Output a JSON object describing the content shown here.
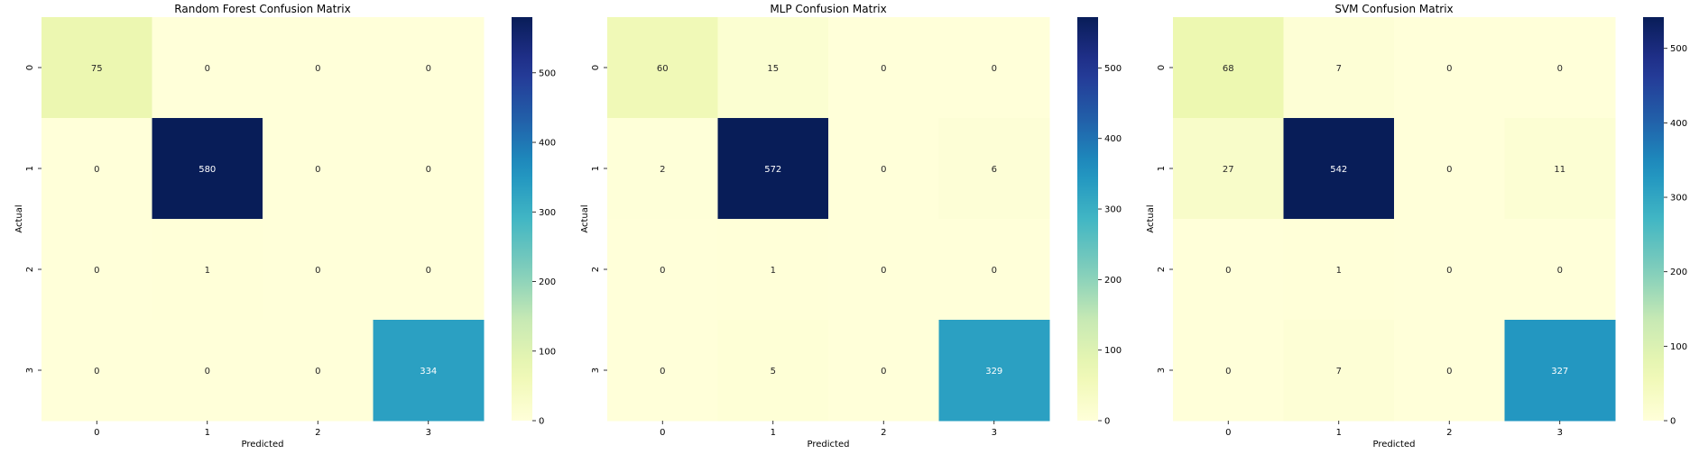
{
  "chart_data": [
    {
      "type": "heatmap",
      "title": "Random Forest Confusion Matrix",
      "xlabel": "Predicted",
      "ylabel": "Actual",
      "x_categories": [
        "0",
        "1",
        "2",
        "3"
      ],
      "y_categories": [
        "0",
        "1",
        "2",
        "3"
      ],
      "values": [
        [
          75,
          0,
          0,
          0
        ],
        [
          0,
          580,
          0,
          0
        ],
        [
          0,
          1,
          0,
          0
        ],
        [
          0,
          0,
          0,
          334
        ]
      ],
      "colormap": "YlGnBu",
      "colorbar": {
        "range": [
          0,
          580
        ],
        "ticks": [
          0,
          100,
          200,
          300,
          400,
          500
        ]
      }
    },
    {
      "type": "heatmap",
      "title": "MLP Confusion Matrix",
      "xlabel": "Predicted",
      "ylabel": "Actual",
      "x_categories": [
        "0",
        "1",
        "2",
        "3"
      ],
      "y_categories": [
        "0",
        "1",
        "2",
        "3"
      ],
      "values": [
        [
          60,
          15,
          0,
          0
        ],
        [
          2,
          572,
          0,
          6
        ],
        [
          0,
          1,
          0,
          0
        ],
        [
          0,
          5,
          0,
          329
        ]
      ],
      "colormap": "YlGnBu",
      "colorbar": {
        "range": [
          0,
          572
        ],
        "ticks": [
          0,
          100,
          200,
          300,
          400,
          500
        ]
      }
    },
    {
      "type": "heatmap",
      "title": "SVM Confusion Matrix",
      "xlabel": "Predicted",
      "ylabel": "Actual",
      "x_categories": [
        "0",
        "1",
        "2",
        "3"
      ],
      "y_categories": [
        "0",
        "1",
        "2",
        "3"
      ],
      "values": [
        [
          68,
          7,
          0,
          0
        ],
        [
          27,
          542,
          0,
          11
        ],
        [
          0,
          1,
          0,
          0
        ],
        [
          0,
          7,
          0,
          327
        ]
      ],
      "colormap": "YlGnBu",
      "colorbar": {
        "range": [
          0,
          542
        ],
        "ticks": [
          0,
          100,
          200,
          300,
          400,
          500
        ]
      }
    }
  ]
}
